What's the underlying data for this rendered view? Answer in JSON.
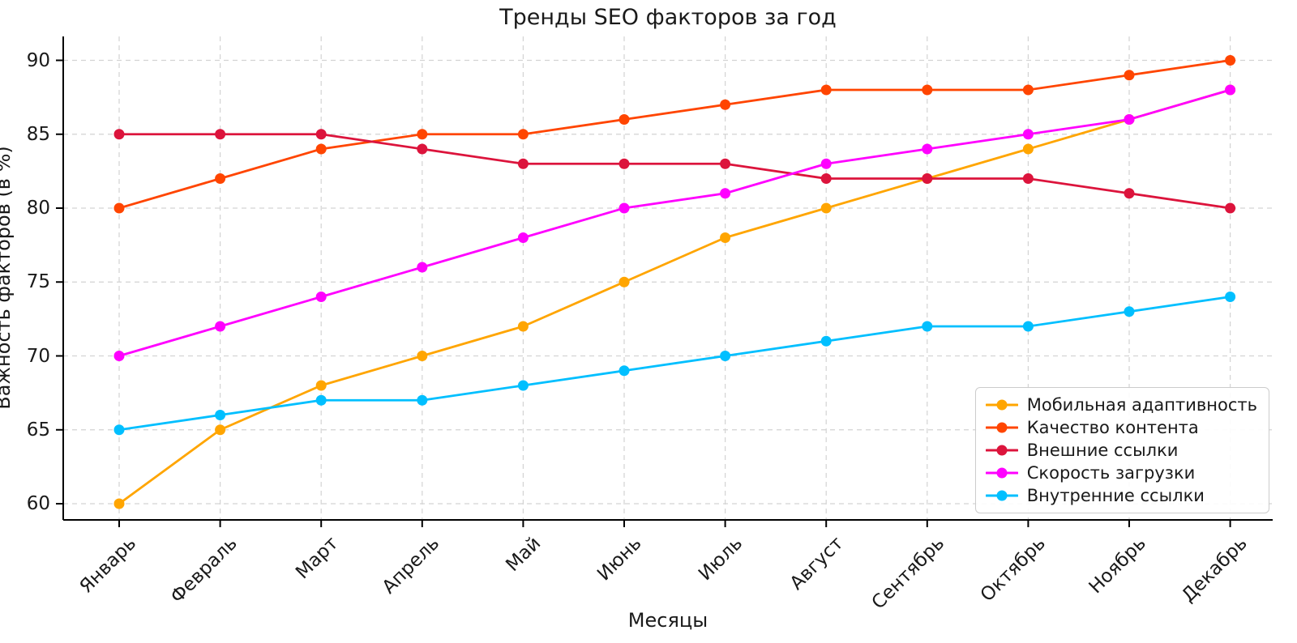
{
  "chart_data": {
    "type": "line",
    "title": "Тренды SEO факторов за год",
    "xlabel": "Месяцы",
    "ylabel": "Важность факторов (в %)",
    "categories": [
      "Январь",
      "Февраль",
      "Март",
      "Апрель",
      "Май",
      "Июнь",
      "Июль",
      "Август",
      "Сентябрь",
      "Октябрь",
      "Ноябрь",
      "Декабрь"
    ],
    "yticks": [
      60,
      65,
      70,
      75,
      80,
      85,
      90
    ],
    "ylim": [
      58.5,
      91.5
    ],
    "grid": true,
    "grid_style": "dashed",
    "legend_position": "lower right",
    "marker": "circle",
    "series": [
      {
        "name": "Мобильная адаптивность",
        "color": "#FFA500",
        "values": [
          60,
          65,
          68,
          70,
          72,
          75,
          78,
          80,
          82,
          84,
          86,
          88
        ]
      },
      {
        "name": "Качество контента",
        "color": "#FF4500",
        "values": [
          80,
          82,
          84,
          85,
          85,
          86,
          87,
          88,
          88,
          88,
          89,
          90
        ]
      },
      {
        "name": "Внешние ссылки",
        "color": "#DC143C",
        "values": [
          85,
          85,
          85,
          84,
          83,
          83,
          83,
          82,
          82,
          82,
          81,
          80
        ]
      },
      {
        "name": "Скорость загрузки",
        "color": "#FF00FF",
        "values": [
          70,
          72,
          74,
          76,
          78,
          80,
          81,
          83,
          84,
          85,
          86,
          88
        ]
      },
      {
        "name": "Внутренние ссылки",
        "color": "#00BFFF",
        "values": [
          65,
          66,
          67,
          67,
          68,
          69,
          70,
          71,
          72,
          72,
          73,
          74
        ]
      }
    ],
    "colors": {
      "grid": "#d3d3d3",
      "spine": "#000000",
      "text": "#1a1a1a",
      "background": "#ffffff"
    }
  }
}
